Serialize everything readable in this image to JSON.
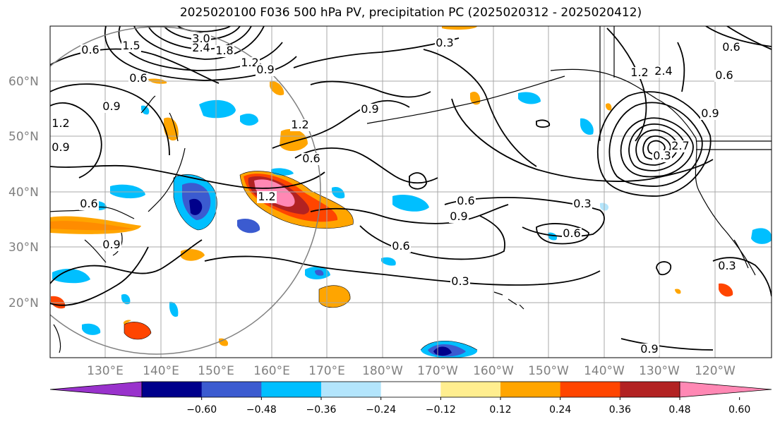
{
  "title": "2025020100 F036 500 hPa PV, precipitation PC (2025020312 - 2025020412)",
  "lat_labels": [
    "60°N",
    "50°N",
    "40°N",
    "30°N",
    "20°N"
  ],
  "lon_labels": [
    "130°E",
    "140°E",
    "150°E",
    "160°E",
    "170°E",
    "180°W",
    "170°W",
    "160°W",
    "150°W",
    "140°W",
    "130°W",
    "120°W"
  ],
  "contour_labels": [
    "0.6",
    "1.5",
    "3.0",
    "2.4",
    "1.8",
    "1.2",
    "0.9",
    "0.3",
    "0.6",
    "0.9",
    "1.2",
    "0.9",
    "1.2",
    "0.9",
    "0.6",
    "1.2",
    "0.6",
    "0.9",
    "0.9",
    "0.6",
    "0.6",
    "0.3",
    "0.3",
    "0.6",
    "0.9",
    "0.3",
    "0.3",
    "2.7",
    "2.4",
    "1.2",
    "0.6",
    "0.6",
    "0.9"
  ],
  "colorbar": {
    "tick_labels": [
      "−0.60",
      "−0.48",
      "−0.36",
      "−0.24",
      "−0.12",
      "0.12",
      "0.24",
      "0.36",
      "0.48",
      "0.60"
    ],
    "colors": [
      "#9932cc",
      "#00008b",
      "#3b5bd0",
      "#00bfff",
      "#b3e5fc",
      "#ffffff",
      "#ffee8f",
      "#ffa500",
      "#ff4500",
      "#b22222",
      "#ff88b4"
    ]
  },
  "colors": {
    "grid": "#a9a9a9",
    "contour": "#000000",
    "circle": "#808080",
    "axis_label": "#808080"
  }
}
